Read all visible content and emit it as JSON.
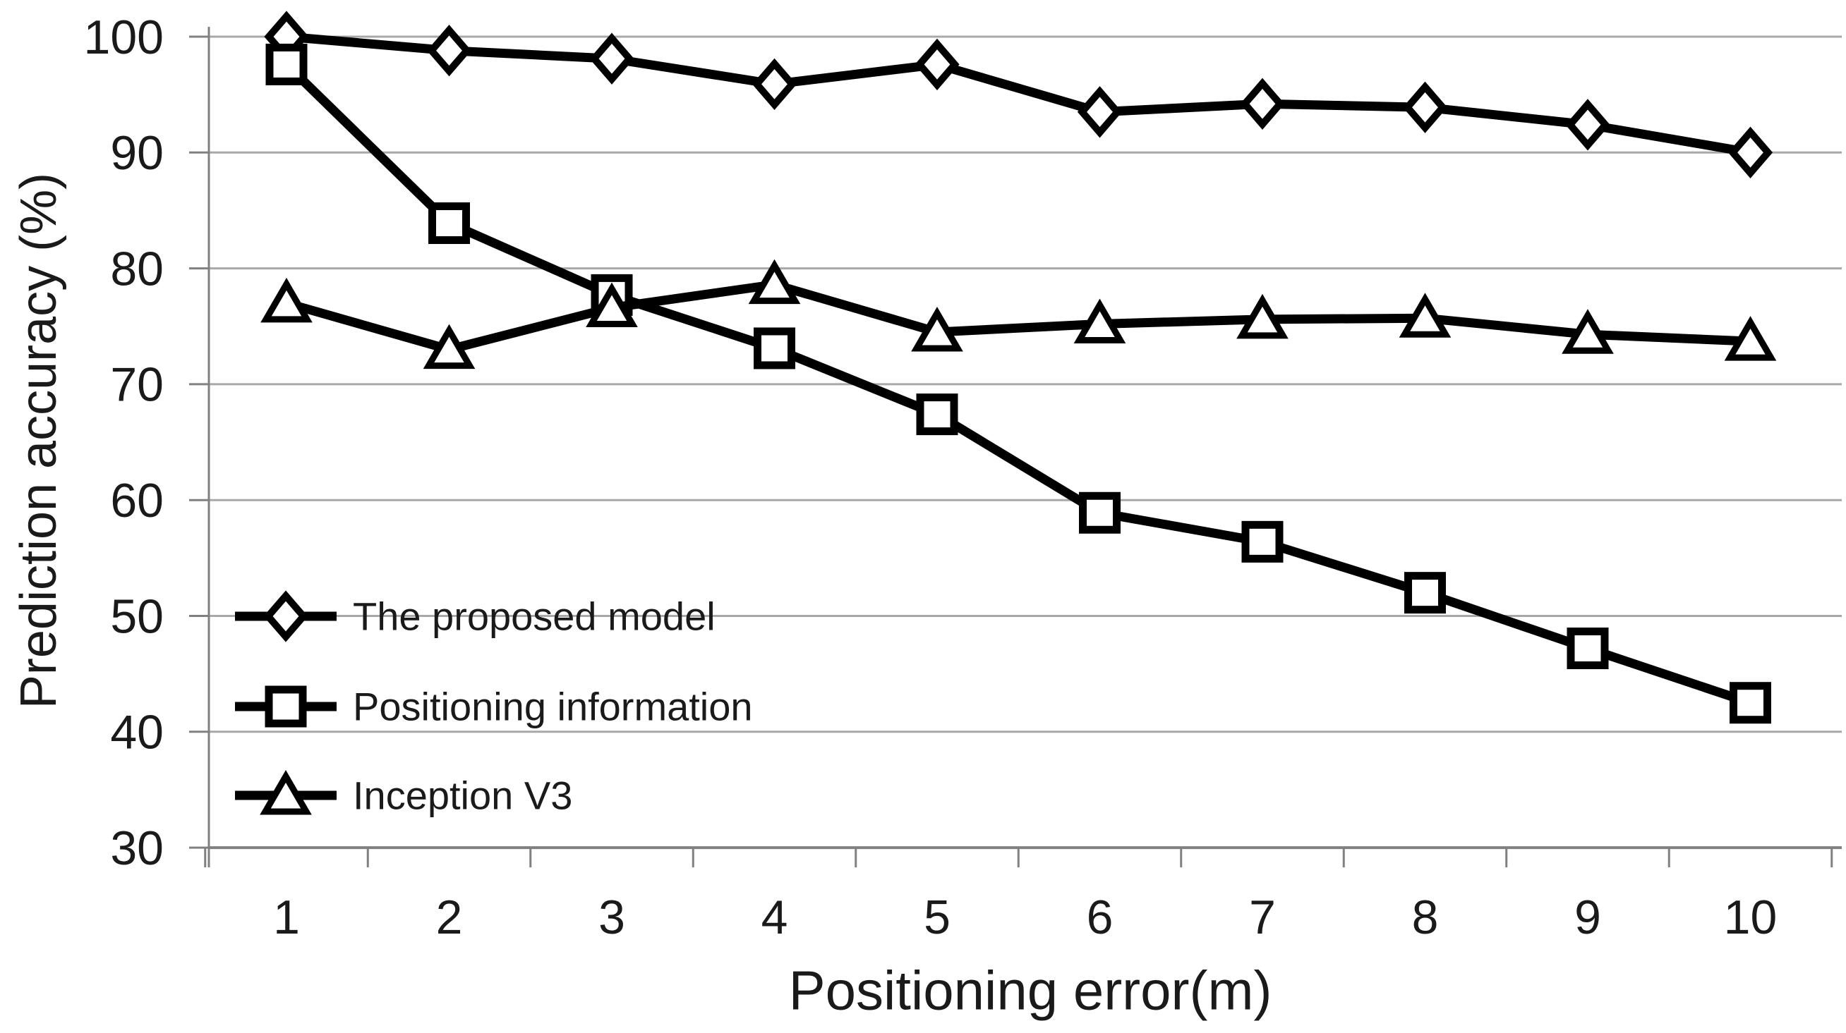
{
  "chart_data": {
    "type": "line",
    "title": "",
    "xlabel": "Positioning error(m)",
    "ylabel": "Prediction accuracy (%)",
    "categories": [
      "1",
      "2",
      "3",
      "4",
      "5",
      "6",
      "7",
      "8",
      "9",
      "10"
    ],
    "series": [
      {
        "name": "The proposed model",
        "marker": "diamond",
        "values": [
          100,
          98.8,
          98.1,
          95.9,
          97.6,
          93.5,
          94.2,
          93.9,
          92.4,
          90
        ]
      },
      {
        "name": "Positioning information",
        "marker": "square",
        "values": [
          97.6,
          83.9,
          77.7,
          73.1,
          67.4,
          58.9,
          56.4,
          52,
          47.2,
          42.5
        ]
      },
      {
        "name": "Inception V3",
        "marker": "triangle",
        "values": [
          77,
          73,
          76.6,
          78.6,
          74.5,
          75.2,
          75.6,
          75.7,
          74.3,
          73.7
        ]
      }
    ],
    "ylim": [
      30,
      100
    ],
    "yticks": [
      100,
      90,
      80,
      70,
      60,
      50,
      40,
      30
    ],
    "grid": true,
    "legend_position": "inside-left-middle",
    "colors": {
      "series_line": "#000000",
      "marker_fill": "#ffffff",
      "gridline": "#a8a8a8",
      "axis_line": "#808080",
      "text": "#1a1a1a"
    }
  }
}
